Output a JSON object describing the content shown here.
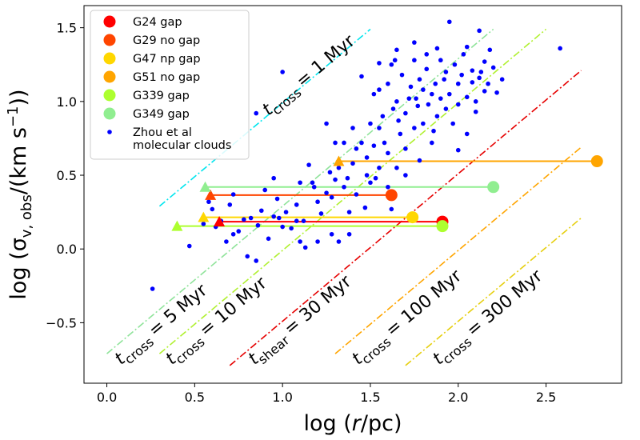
{
  "chart_data": {
    "type": "scatter",
    "xlabel": {
      "prefix": "log (",
      "var": "r",
      "suffix": "/pc)"
    },
    "ylabel": {
      "prefix": "log (σ",
      "sub": "v, obs",
      "mid": "/(km s",
      "sup": "−1",
      "suffix": "))"
    },
    "xlim": [
      -0.13,
      2.93
    ],
    "ylim": [
      -0.91,
      1.65
    ],
    "xticks": [
      {
        "value": 0.0,
        "label": "0.0"
      },
      {
        "value": 0.5,
        "label": "0.5"
      },
      {
        "value": 1.0,
        "label": "1.0"
      },
      {
        "value": 1.5,
        "label": "1.5"
      },
      {
        "value": 2.0,
        "label": "2.0"
      },
      {
        "value": 2.5,
        "label": "2.5"
      }
    ],
    "yticks": [
      {
        "value": -0.5,
        "label": "−0.5"
      },
      {
        "value": 0.0,
        "label": "0.0"
      },
      {
        "value": 0.5,
        "label": "0.5"
      },
      {
        "value": 1.0,
        "label": "1.0"
      },
      {
        "value": 1.5,
        "label": "1.5"
      }
    ],
    "reference_lines": [
      {
        "name": "t_cross_1",
        "sub": "cross",
        "label": "= 1 Myr",
        "color": "#00e5ee",
        "x": [
          0.3,
          1.5
        ],
        "y": [
          0.29,
          1.49
        ],
        "label_x": 0.92,
        "label_y": 0.9
      },
      {
        "name": "t_cross_5",
        "sub": "cross",
        "label": "= 5 Myr",
        "color": "#8fe39a",
        "x": [
          0.0,
          2.2
        ],
        "y": [
          -0.71,
          1.49
        ],
        "label_x": 0.08,
        "label_y": -0.79
      },
      {
        "name": "t_cross_10",
        "sub": "cross",
        "label": "= 10 Myr",
        "color": "#b0f030",
        "x": [
          0.3,
          2.5
        ],
        "y": [
          -0.71,
          1.49
        ],
        "label_x": 0.37,
        "label_y": -0.79
      },
      {
        "name": "t_shear_30",
        "sub": "shear",
        "label": "= 30 Myr",
        "color": "#e60000",
        "x": [
          0.7,
          2.7
        ],
        "y": [
          -0.79,
          1.21
        ],
        "label_x": 0.84,
        "label_y": -0.79
      },
      {
        "name": "t_cross_100",
        "sub": "cross",
        "label": "= 100 Myr",
        "color": "#ffa500",
        "x": [
          1.3,
          2.7
        ],
        "y": [
          -0.71,
          0.69
        ],
        "label_x": 1.43,
        "label_y": -0.79
      },
      {
        "name": "t_cross_300",
        "sub": "cross",
        "label": "= 300 Myr",
        "color": "#e6cf10",
        "x": [
          1.7,
          2.7
        ],
        "y": [
          -0.79,
          0.21
        ],
        "label_x": 1.89,
        "label_y": -0.79
      }
    ],
    "series": [
      {
        "name": "G24 gap",
        "color": "#ff0000",
        "x_triangle": 0.64,
        "x_circle": 1.91,
        "y": 0.185
      },
      {
        "name": "G29 no gap",
        "color": "#ff4500",
        "x_triangle": 0.59,
        "x_circle": 1.62,
        "y": 0.365
      },
      {
        "name": "G47 np gap",
        "color": "#ffd700",
        "x_triangle": 0.55,
        "x_circle": 1.74,
        "y": 0.215
      },
      {
        "name": "G51 no gap",
        "color": "#ffa500",
        "x_triangle": 1.32,
        "x_circle": 2.79,
        "y": 0.595
      },
      {
        "name": "G339 gap",
        "color": "#adff2f",
        "x_triangle": 0.4,
        "x_circle": 1.91,
        "y": 0.155
      },
      {
        "name": "G349 gap",
        "color": "#90ee90",
        "x_triangle": 0.56,
        "x_circle": 2.2,
        "y": 0.42
      }
    ],
    "scatter_series": {
      "name": "Zhou  et al molecular clouds",
      "legend_lines": [
        "Zhou  et al",
        "molecular clouds"
      ],
      "color": "#0000ff",
      "points": [
        [
          0.26,
          -0.27
        ],
        [
          0.47,
          0.02
        ],
        [
          0.55,
          0.17
        ],
        [
          0.58,
          0.32
        ],
        [
          0.6,
          0.27
        ],
        [
          0.62,
          0.15
        ],
        [
          0.65,
          0.19
        ],
        [
          0.7,
          0.3
        ],
        [
          0.72,
          0.37
        ],
        [
          0.75,
          0.12
        ],
        [
          0.78,
          0.2
        ],
        [
          0.8,
          -0.05
        ],
        [
          0.82,
          0.21
        ],
        [
          0.85,
          0.92
        ],
        [
          0.85,
          -0.08
        ],
        [
          0.88,
          0.26
        ],
        [
          0.9,
          0.4
        ],
        [
          0.92,
          0.07
        ],
        [
          0.95,
          0.22
        ],
        [
          0.97,
          0.34
        ],
        [
          1.0,
          0.15
        ],
        [
          1.0,
          1.2
        ],
        [
          1.02,
          0.25
        ],
        [
          1.05,
          0.14
        ],
        [
          1.08,
          0.3
        ],
        [
          1.1,
          0.05
        ],
        [
          1.12,
          0.19
        ],
        [
          1.13,
          0.01
        ],
        [
          1.15,
          0.57
        ],
        [
          1.17,
          0.45
        ],
        [
          1.18,
          0.42
        ],
        [
          1.2,
          0.32
        ],
        [
          1.2,
          0.05
        ],
        [
          1.22,
          0.24
        ],
        [
          1.25,
          0.85
        ],
        [
          1.25,
          0.38
        ],
        [
          1.27,
          0.52
        ],
        [
          1.28,
          0.35
        ],
        [
          1.28,
          0.1
        ],
        [
          1.3,
          0.47
        ],
        [
          1.32,
          0.55
        ],
        [
          1.32,
          0.05
        ],
        [
          1.35,
          0.72
        ],
        [
          1.35,
          0.42
        ],
        [
          1.37,
          0.48
        ],
        [
          1.38,
          0.1
        ],
        [
          1.4,
          0.82
        ],
        [
          1.4,
          0.58
        ],
        [
          1.42,
          0.68
        ],
        [
          1.42,
          0.37
        ],
        [
          1.45,
          0.72
        ],
        [
          1.47,
          0.28
        ],
        [
          1.48,
          0.62
        ],
        [
          1.5,
          0.85
        ],
        [
          1.5,
          0.45
        ],
        [
          1.52,
          1.05
        ],
        [
          1.52,
          0.7
        ],
        [
          1.53,
          0.48
        ],
        [
          1.55,
          0.82
        ],
        [
          1.55,
          0.55
        ],
        [
          1.57,
          0.9
        ],
        [
          1.58,
          0.72
        ],
        [
          1.6,
          1.12
        ],
        [
          1.6,
          0.65
        ],
        [
          1.62,
          1.25
        ],
        [
          1.63,
          0.95
        ],
        [
          1.64,
          1.28
        ],
        [
          1.65,
          1.0
        ],
        [
          1.65,
          0.55
        ],
        [
          1.67,
          0.78
        ],
        [
          1.68,
          1.18
        ],
        [
          1.7,
          0.92
        ],
        [
          1.7,
          0.68
        ],
        [
          1.72,
          1.02
        ],
        [
          1.73,
          1.1
        ],
        [
          1.75,
          1.28
        ],
        [
          1.75,
          0.82
        ],
        [
          1.77,
          0.97
        ],
        [
          1.78,
          1.15
        ],
        [
          1.8,
          1.08
        ],
        [
          1.8,
          0.85
        ],
        [
          1.82,
          1.22
        ],
        [
          1.83,
          0.98
        ],
        [
          1.85,
          1.05
        ],
        [
          1.85,
          0.72
        ],
        [
          1.87,
          1.12
        ],
        [
          1.88,
          0.9
        ],
        [
          1.9,
          1.28
        ],
        [
          1.9,
          1.02
        ],
        [
          1.92,
          1.15
        ],
        [
          1.93,
          0.95
        ],
        [
          1.95,
          1.05
        ],
        [
          1.95,
          1.54
        ],
        [
          1.97,
          0.85
        ],
        [
          1.98,
          1.25
        ],
        [
          2.0,
          0.98
        ],
        [
          2.0,
          1.12
        ],
        [
          2.02,
          1.18
        ],
        [
          2.03,
          1.32
        ],
        [
          2.05,
          0.78
        ],
        [
          2.05,
          1.03
        ],
        [
          2.08,
          1.13
        ],
        [
          2.1,
          1.0
        ],
        [
          2.1,
          0.93
        ],
        [
          2.12,
          1.48
        ],
        [
          2.13,
          1.2
        ],
        [
          2.15,
          1.27
        ],
        [
          2.15,
          1.07
        ],
        [
          2.17,
          1.12
        ],
        [
          2.18,
          1.35
        ],
        [
          2.2,
          1.23
        ],
        [
          2.22,
          1.06
        ],
        [
          2.25,
          1.15
        ],
        [
          2.58,
          1.36
        ],
        [
          1.45,
          1.17
        ],
        [
          1.55,
          1.08
        ],
        [
          1.65,
          1.35
        ],
        [
          1.75,
          1.4
        ],
        [
          1.88,
          1.36
        ],
        [
          2.05,
          1.37
        ],
        [
          1.3,
          0.72
        ],
        [
          1.1,
          0.45
        ],
        [
          0.95,
          0.48
        ],
        [
          0.68,
          0.05
        ],
        [
          0.72,
          0.1
        ],
        [
          1.6,
          0.42
        ],
        [
          1.78,
          0.6
        ],
        [
          2.0,
          0.67
        ],
        [
          1.86,
          0.8
        ],
        [
          1.66,
          0.87
        ],
        [
          1.48,
          0.5
        ],
        [
          1.38,
          0.25
        ],
        [
          1.08,
          0.19
        ],
        [
          0.98,
          0.21
        ],
        [
          0.86,
          0.16
        ],
        [
          1.62,
          0.27
        ],
        [
          1.7,
          0.5
        ],
        [
          1.93,
          1.2
        ],
        [
          2.08,
          1.21
        ],
        [
          2.12,
          1.16
        ],
        [
          1.82,
          1.32
        ],
        [
          1.76,
          1.02
        ],
        [
          1.55,
          1.26
        ]
      ]
    }
  }
}
